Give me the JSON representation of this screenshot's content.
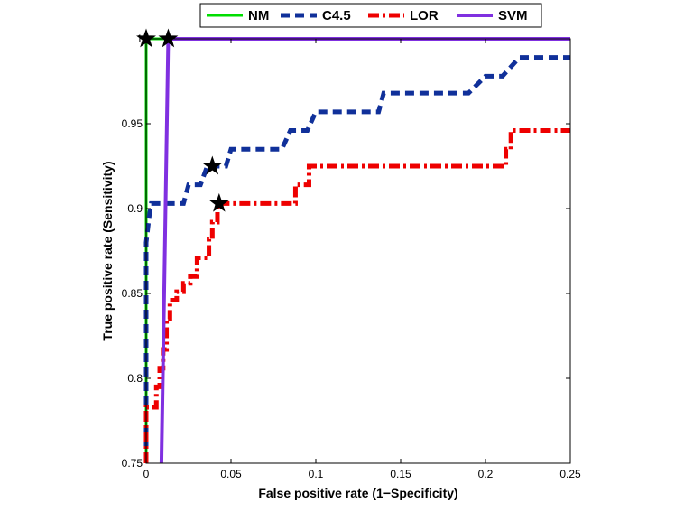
{
  "chart_data": {
    "type": "line",
    "title": "",
    "xlabel": "False positive rate (1−Specificity)",
    "ylabel": "True positive rate (Sensitivity)",
    "xlim": [
      0,
      0.25
    ],
    "ylim": [
      0.75,
      1.0
    ],
    "x_ticks": [
      0,
      0.05,
      0.1,
      0.15,
      0.2,
      0.25
    ],
    "x_tick_labels": [
      "0",
      "0.05",
      "0.1",
      "0.15",
      "0.2",
      "0.25"
    ],
    "y_ticks": [
      0.75,
      0.8,
      0.85,
      0.9,
      0.95,
      1.0
    ],
    "y_tick_labels": [
      "0.75",
      "0.8",
      "0.85",
      "0.9",
      "0.95",
      "1"
    ],
    "grid": false,
    "legend_position": "top-center",
    "series": [
      {
        "name": "NM",
        "color": "#00dd00",
        "style": "solid",
        "points": [
          [
            0,
            0.75
          ],
          [
            0,
            1.0
          ],
          [
            0.25,
            1.0
          ]
        ],
        "marker": [
          0,
          1.0
        ]
      },
      {
        "name": "C4.5",
        "color": "#10309a",
        "style": "dashed",
        "points": [
          [
            0,
            0.75
          ],
          [
            0,
            0.88
          ],
          [
            0.002,
            0.897
          ],
          [
            0.003,
            0.903
          ],
          [
            0.022,
            0.903
          ],
          [
            0.025,
            0.914
          ],
          [
            0.032,
            0.914
          ],
          [
            0.036,
            0.925
          ],
          [
            0.047,
            0.925
          ],
          [
            0.05,
            0.935
          ],
          [
            0.08,
            0.935
          ],
          [
            0.085,
            0.946
          ],
          [
            0.095,
            0.946
          ],
          [
            0.1,
            0.957
          ],
          [
            0.137,
            0.957
          ],
          [
            0.14,
            0.968
          ],
          [
            0.19,
            0.968
          ],
          [
            0.2,
            0.978
          ],
          [
            0.21,
            0.978
          ],
          [
            0.22,
            0.989
          ],
          [
            0.25,
            0.989
          ]
        ],
        "marker": [
          0.039,
          0.925
        ]
      },
      {
        "name": "LOR",
        "color": "#ee0000",
        "style": "dash-dot",
        "points": [
          [
            0,
            0.75
          ],
          [
            0,
            0.783
          ],
          [
            0.006,
            0.783
          ],
          [
            0.006,
            0.795
          ],
          [
            0.008,
            0.795
          ],
          [
            0.008,
            0.806
          ],
          [
            0.01,
            0.806
          ],
          [
            0.01,
            0.817
          ],
          [
            0.012,
            0.817
          ],
          [
            0.012,
            0.835
          ],
          [
            0.014,
            0.835
          ],
          [
            0.014,
            0.846
          ],
          [
            0.018,
            0.846
          ],
          [
            0.018,
            0.851
          ],
          [
            0.022,
            0.851
          ],
          [
            0.022,
            0.856
          ],
          [
            0.026,
            0.856
          ],
          [
            0.026,
            0.86
          ],
          [
            0.03,
            0.86
          ],
          [
            0.03,
            0.871
          ],
          [
            0.037,
            0.871
          ],
          [
            0.037,
            0.882
          ],
          [
            0.039,
            0.882
          ],
          [
            0.039,
            0.892
          ],
          [
            0.042,
            0.892
          ],
          [
            0.042,
            0.903
          ],
          [
            0.088,
            0.903
          ],
          [
            0.088,
            0.914
          ],
          [
            0.096,
            0.914
          ],
          [
            0.096,
            0.925
          ],
          [
            0.212,
            0.925
          ],
          [
            0.212,
            0.935
          ],
          [
            0.215,
            0.935
          ],
          [
            0.215,
            0.946
          ],
          [
            0.25,
            0.946
          ]
        ],
        "marker": [
          0.043,
          0.903
        ]
      },
      {
        "name": "SVM",
        "color": "#8030e0",
        "style": "solid",
        "points": [
          [
            0.009,
            0.75
          ],
          [
            0.013,
            1.0
          ],
          [
            0.25,
            1.0
          ]
        ],
        "marker": [
          0.013,
          1.0
        ]
      }
    ]
  }
}
